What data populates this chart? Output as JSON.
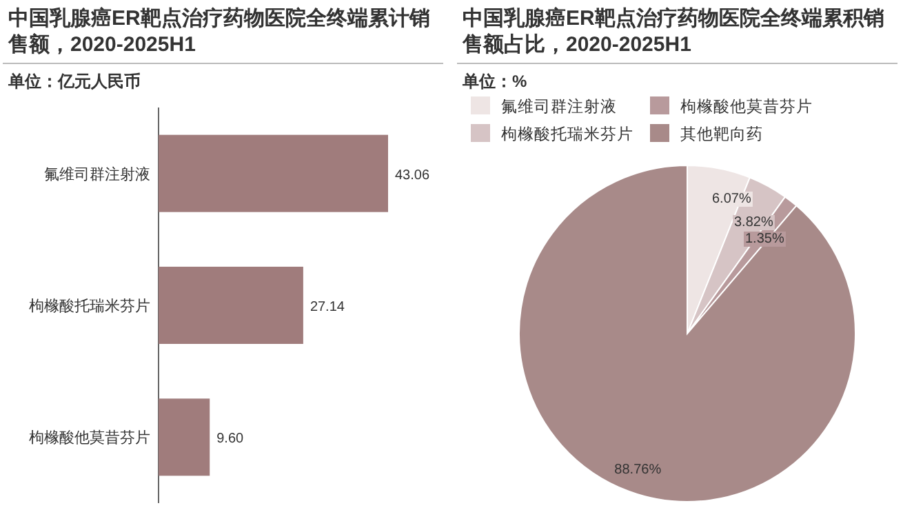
{
  "chart_data": [
    {
      "type": "bar",
      "orientation": "horizontal",
      "title": "中国乳腺癌ER靶点治疗药物医院全终端累计销售额，2020-2025H1",
      "subtitle": "单位：亿元人民币",
      "categories": [
        "氟维司群注射液",
        "枸橼酸托瑞米芬片",
        "枸橼酸他莫昔芬片"
      ],
      "values": [
        43.06,
        27.14,
        9.6
      ],
      "value_labels": [
        "43.06",
        "27.14",
        "9.60"
      ],
      "color": "#a07c7c"
    },
    {
      "type": "pie",
      "title": "中国乳腺癌ER靶点治疗药物医院全终端累积销售额占比，2020-2025H1",
      "subtitle": "单位：%",
      "categories": [
        "氟维司群注射液",
        "枸橼酸托瑞米芬片",
        "枸橼酸他莫昔芬片",
        "其他靶向药"
      ],
      "values": [
        6.07,
        3.82,
        1.35,
        88.76
      ],
      "value_labels": [
        "6.07%",
        "3.82%",
        "1.35%",
        "88.76%"
      ],
      "colors": [
        "#eee5e4",
        "#d6c4c5",
        "#b89a9c",
        "#a88a89"
      ],
      "legend": "top"
    }
  ]
}
